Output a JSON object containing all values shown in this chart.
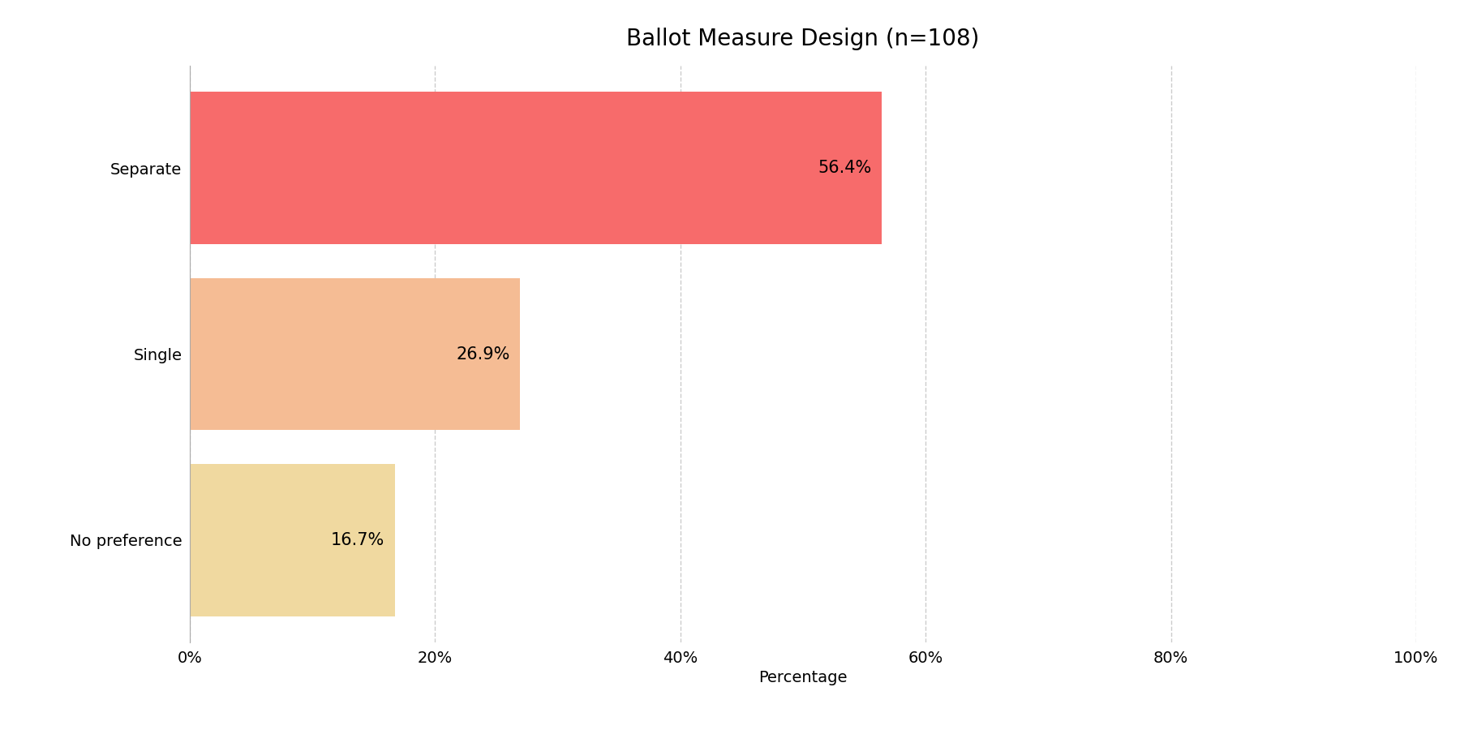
{
  "title": "Ballot Measure Design (n=108)",
  "categories": [
    "No preference",
    "Single",
    "Separate"
  ],
  "values": [
    16.7,
    26.9,
    56.4
  ],
  "bar_colors": [
    "#f0d9a0",
    "#f5bc94",
    "#f76b6b"
  ],
  "bar_labels": [
    "16.7%",
    "26.9%",
    "56.4%"
  ],
  "xlabel": "Percentage",
  "xlim": [
    0,
    100
  ],
  "xticks": [
    0,
    20,
    40,
    60,
    80,
    100
  ],
  "xtick_labels": [
    "0%",
    "20%",
    "40%",
    "60%",
    "80%",
    "100%"
  ],
  "title_fontsize": 20,
  "label_fontsize": 15,
  "tick_fontsize": 14,
  "bar_height": 0.82,
  "background_color": "#ffffff",
  "grid_color": "#cccccc"
}
